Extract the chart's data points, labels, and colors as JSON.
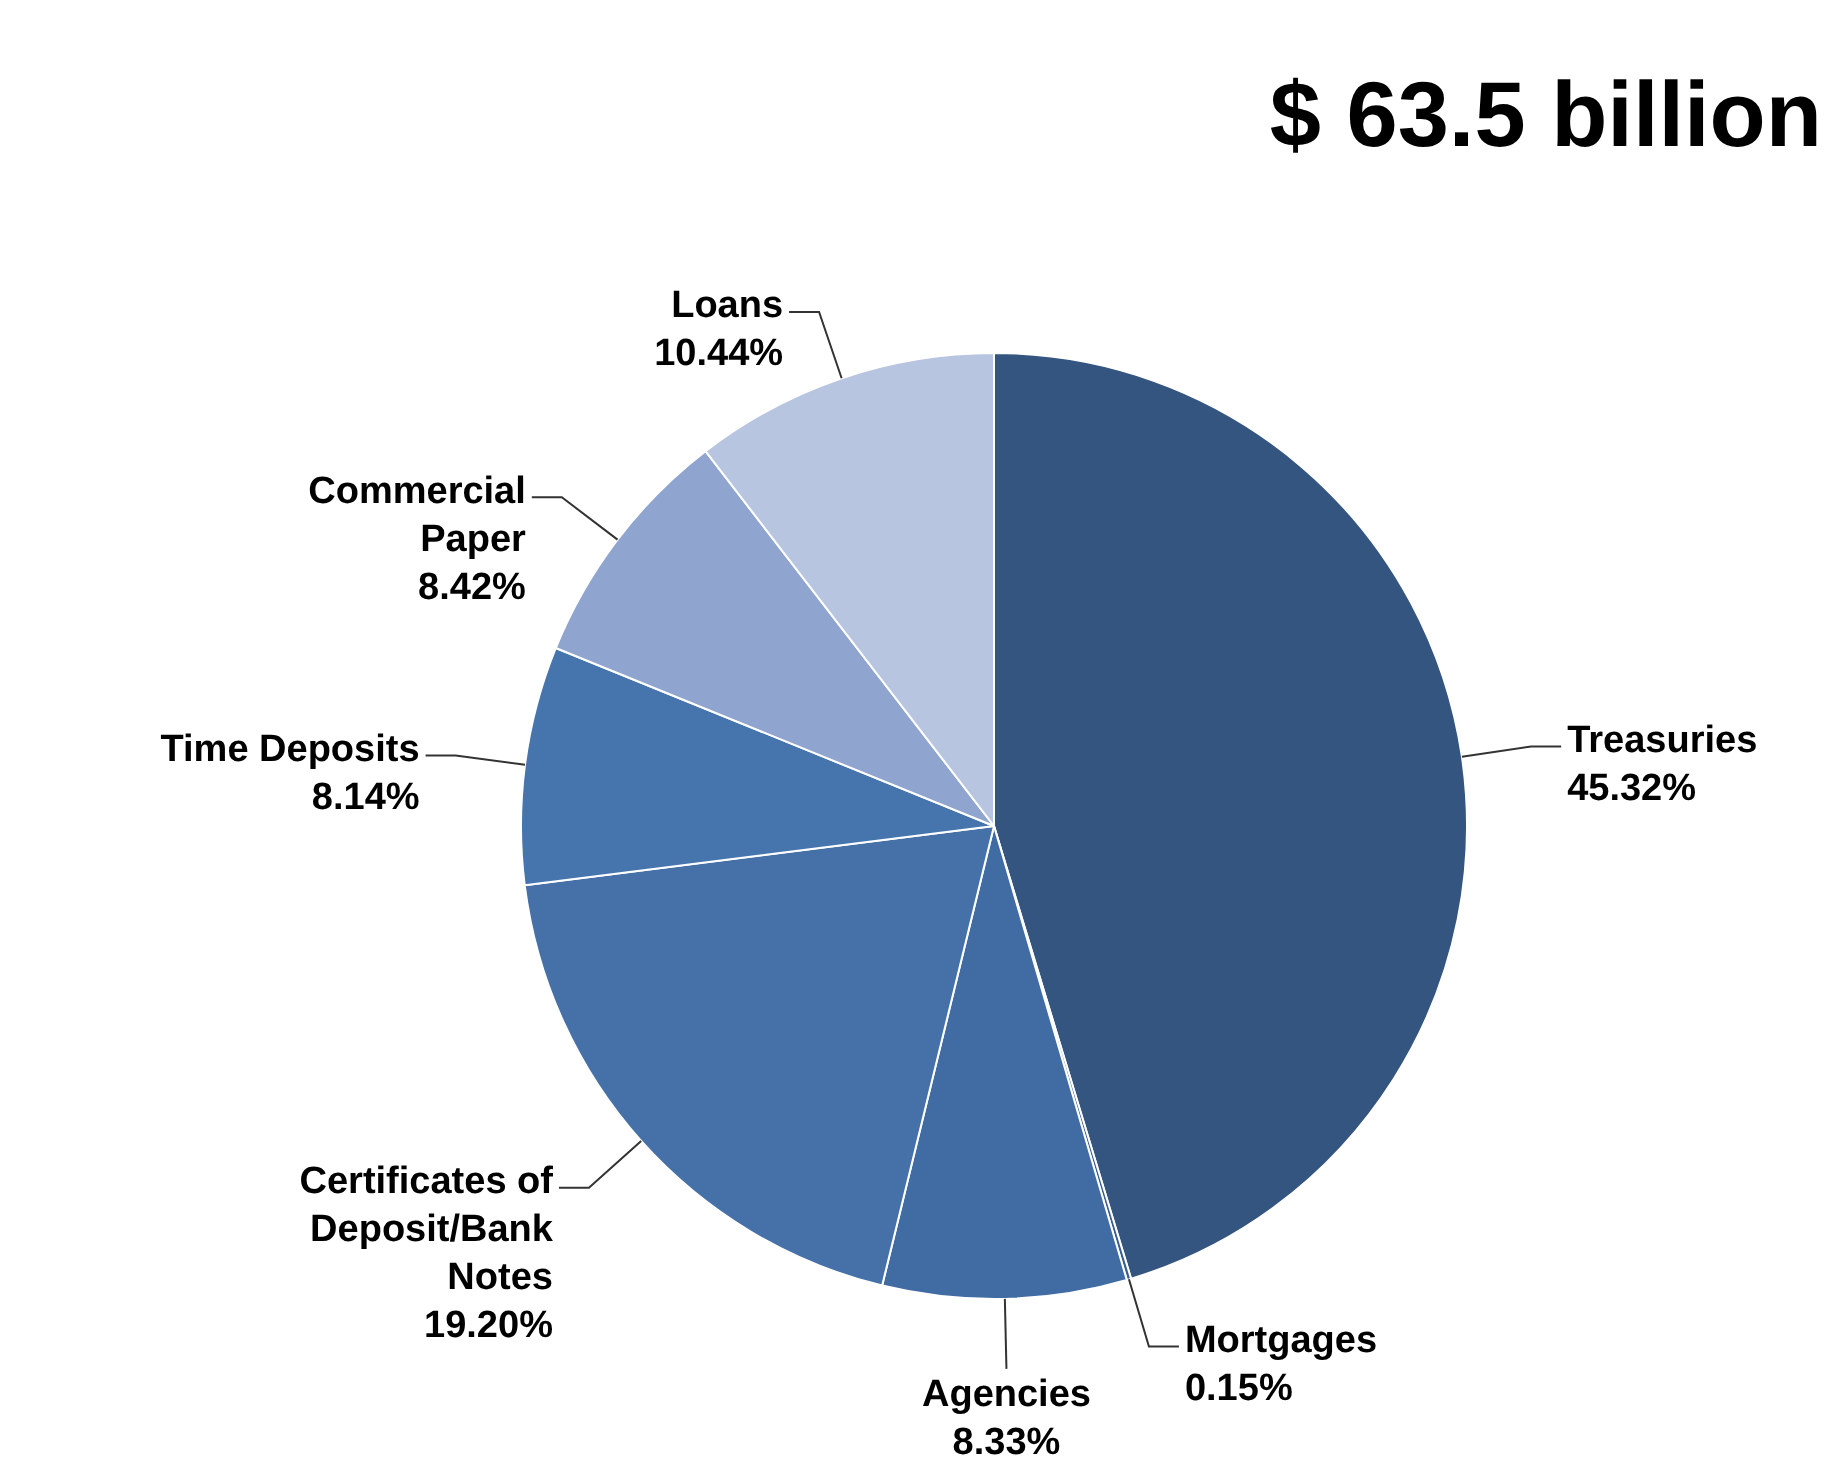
{
  "chart_data": {
    "type": "pie",
    "title": "$ 63.5 billion",
    "categories": [
      "Treasuries",
      "Mortgages",
      "Agencies",
      "Certificates of Deposit/Bank Notes",
      "Time Deposits",
      "Commercial Paper",
      "Loans"
    ],
    "values": [
      45.32,
      0.15,
      8.33,
      19.2,
      8.14,
      8.42,
      10.44
    ],
    "value_labels": [
      "45.32%",
      "0.15%",
      "8.33%",
      "19.20%",
      "8.14%",
      "8.42%",
      "10.44%"
    ],
    "colors": [
      "#34557f",
      "#3a5f8f",
      "#416ca3",
      "#4570a8",
      "#4675ad",
      "#8fa5cf",
      "#b8c5e0"
    ],
    "legend": false
  }
}
